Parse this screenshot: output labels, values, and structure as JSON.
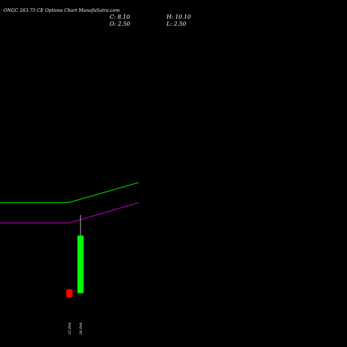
{
  "title": "ONGC 263.75 CE Options  Chart MunafaSutra.com",
  "ohlc": {
    "close_label": "C: 8.10",
    "high_label": "H: 10.10",
    "open_label": "O: 2.50",
    "low_label": "L: 2.50"
  },
  "colors": {
    "background": "#000000",
    "up_candle": "#00ff00",
    "down_candle": "#ff0000",
    "ma_short": "#00cc00",
    "ma_long": "#aa00aa",
    "text": "#ffffff"
  },
  "chart_data": {
    "type": "candlestick",
    "candles": [
      {
        "date": "25 Feb",
        "open": 2.85,
        "high": 2.9,
        "low": 2.05,
        "close": 2.1,
        "direction": "down"
      },
      {
        "date": "26 Feb",
        "open": 2.5,
        "high": 10.1,
        "low": 2.5,
        "close": 8.1,
        "direction": "up"
      }
    ],
    "price_range": [
      1.5,
      11
    ],
    "moving_averages": [
      {
        "color": "#00cc00",
        "values": [
          11.33,
          13.27
        ]
      },
      {
        "color": "#aa00aa",
        "values": [
          9.33,
          11.31
        ]
      }
    ]
  }
}
